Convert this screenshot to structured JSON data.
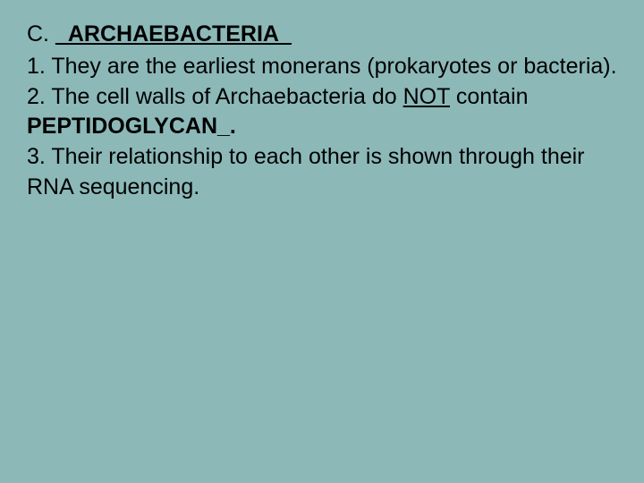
{
  "slide": {
    "background_color": "#8cb8b8",
    "text_color": "#000000",
    "font_family": "Arial",
    "base_fontsize_pt": 19,
    "heading": {
      "label": "C.  ",
      "title": "_ARCHAEBACTERIA_",
      "title_bold": true,
      "title_underline": true
    },
    "items": [
      {
        "number": "1.  ",
        "text_parts": [
          {
            "text": "They are the earliest monerans (prokaryotes or bacteria).",
            "bold": false,
            "underline": false
          }
        ]
      },
      {
        "number": "2.  ",
        "text_parts": [
          {
            "text": "The cell walls of Archaebacteria do ",
            "bold": false,
            "underline": false
          },
          {
            "text": "NOT",
            "bold": false,
            "underline": true
          },
          {
            "text": " contain ",
            "bold": false,
            "underline": false
          },
          {
            "text": "PEPTIDOGLYCAN_.",
            "bold": true,
            "underline": false
          }
        ]
      },
      {
        "number": "3.  ",
        "text_parts": [
          {
            "text": "Their relationship to each other is shown through their RNA sequencing.",
            "bold": false,
            "underline": false
          }
        ]
      }
    ]
  }
}
